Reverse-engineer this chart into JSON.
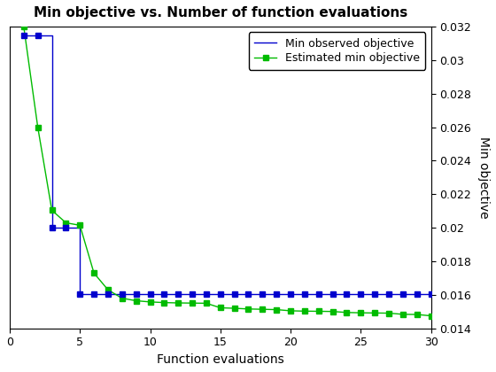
{
  "title": "Min objective vs. Number of function evaluations",
  "xlabel": "Function evaluations",
  "ylabel": "Min objective",
  "xlim": [
    0,
    30
  ],
  "ylim": [
    0.014,
    0.032
  ],
  "ytick_values": [
    0.014,
    0.016,
    0.018,
    0.02,
    0.022,
    0.024,
    0.026,
    0.028,
    0.03,
    0.032
  ],
  "ytick_labels": [
    "0.014",
    "0.016",
    "0.018",
    "0.02",
    "0.022",
    "0.024",
    "0.026",
    "0.028",
    "0.03",
    "0.032"
  ],
  "xticks": [
    0,
    5,
    10,
    15,
    20,
    25,
    30
  ],
  "blue_x": [
    1,
    2,
    3,
    4,
    5,
    6,
    7,
    8,
    9,
    10,
    11,
    12,
    13,
    14,
    15,
    16,
    17,
    18,
    19,
    20,
    21,
    22,
    23,
    24,
    25,
    26,
    27,
    28,
    29,
    30
  ],
  "blue_y": [
    0.0315,
    0.0315,
    0.02,
    0.02,
    0.01605,
    0.01605,
    0.01605,
    0.01605,
    0.01605,
    0.01605,
    0.01605,
    0.01605,
    0.01605,
    0.01605,
    0.01605,
    0.01605,
    0.01605,
    0.01605,
    0.01605,
    0.01605,
    0.01605,
    0.01605,
    0.01605,
    0.01605,
    0.01605,
    0.01605,
    0.01605,
    0.01605,
    0.01605,
    0.01605
  ],
  "green_x": [
    1,
    2,
    3,
    4,
    5,
    6,
    7,
    8,
    9,
    10,
    11,
    12,
    13,
    14,
    15,
    16,
    17,
    18,
    19,
    20,
    21,
    22,
    23,
    24,
    25,
    26,
    27,
    28,
    29,
    30
  ],
  "green_y": [
    0.032,
    0.026,
    0.02105,
    0.0203,
    0.02015,
    0.0173,
    0.0163,
    0.0158,
    0.01565,
    0.01558,
    0.01554,
    0.01552,
    0.01551,
    0.0155,
    0.01523,
    0.0152,
    0.01516,
    0.01514,
    0.01512,
    0.01505,
    0.01503,
    0.01502,
    0.01501,
    0.01495,
    0.01493,
    0.01492,
    0.01491,
    0.01484,
    0.01483,
    0.01475
  ],
  "blue_color": "#0000cd",
  "green_color": "#00bb00",
  "legend_labels": [
    "Min observed objective",
    "Estimated min objective"
  ],
  "marker_size": 4,
  "line_width": 1.0,
  "title_fontsize": 11,
  "axis_fontsize": 10,
  "tick_fontsize": 9,
  "legend_fontsize": 9,
  "bg_color": "#ffffff"
}
